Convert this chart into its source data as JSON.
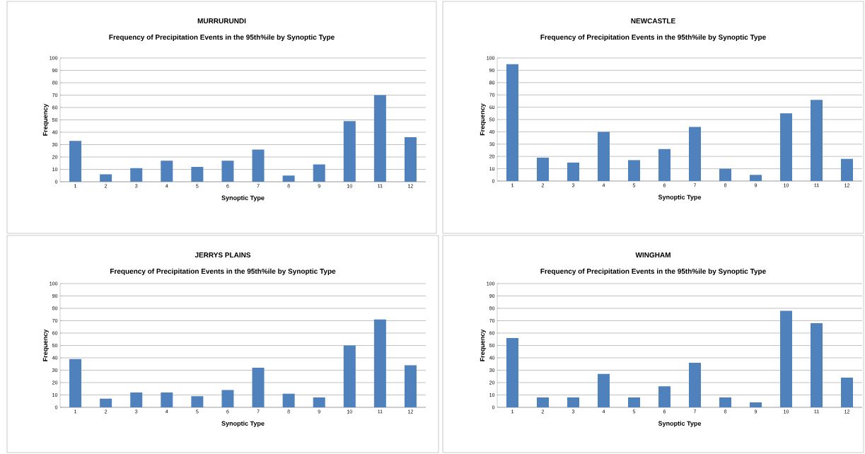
{
  "chart_data": [
    {
      "type": "bar",
      "title": "MURRURUNDI",
      "subtitle": "Frequency of Precipitation  Events in the 95th%ile by Synoptic Type",
      "xlabel": "Synoptic Type",
      "ylabel": "Frequency",
      "categories": [
        "1",
        "2",
        "3",
        "4",
        "5",
        "6",
        "7",
        "8",
        "9",
        "10",
        "11",
        "12"
      ],
      "values": [
        33,
        6,
        11,
        17,
        12,
        17,
        26,
        5,
        14,
        49,
        70,
        36
      ],
      "color": "#4f81bd",
      "ylim": [
        0,
        100
      ],
      "yticks": [
        0,
        10,
        20,
        30,
        40,
        50,
        60,
        70,
        80,
        90,
        100
      ],
      "grid": "y"
    },
    {
      "type": "bar",
      "title": "NEWCASTLE",
      "subtitle": "Frequency of Precipitation  Events in the 95th%ile by Synoptic Type",
      "xlabel": "Synoptic Type",
      "ylabel": "Frequency",
      "categories": [
        "1",
        "2",
        "3",
        "4",
        "5",
        "6",
        "7",
        "8",
        "9",
        "10",
        "11",
        "12"
      ],
      "values": [
        95,
        19,
        15,
        40,
        17,
        26,
        44,
        10,
        5,
        55,
        66,
        18
      ],
      "color": "#4f81bd",
      "ylim": [
        0,
        100
      ],
      "yticks": [
        0,
        10,
        20,
        30,
        40,
        50,
        60,
        70,
        80,
        90,
        100
      ],
      "grid": "y"
    },
    {
      "type": "bar",
      "title": "JERRYS PLAINS",
      "subtitle": "Frequency of Precipitation  Events in the 95th%ile by Synoptic Type",
      "xlabel": "Synoptic Type",
      "ylabel": "Frequency",
      "categories": [
        "1",
        "2",
        "3",
        "4",
        "5",
        "6",
        "7",
        "8",
        "9",
        "10",
        "11",
        "12"
      ],
      "values": [
        39,
        7,
        12,
        12,
        9,
        14,
        32,
        11,
        8,
        50,
        71,
        34
      ],
      "color": "#4f81bd",
      "ylim": [
        0,
        100
      ],
      "yticks": [
        0,
        10,
        20,
        30,
        40,
        50,
        60,
        70,
        80,
        90,
        100
      ],
      "grid": "y"
    },
    {
      "type": "bar",
      "title": "WINGHAM",
      "subtitle": "Frequency of Precipitation  Events in the 95th%ile by Synoptic Type",
      "xlabel": "Synoptic Type",
      "ylabel": "Frequency",
      "categories": [
        "1",
        "2",
        "3",
        "4",
        "5",
        "6",
        "7",
        "8",
        "9",
        "10",
        "11",
        "12"
      ],
      "values": [
        56,
        8,
        8,
        27,
        8,
        17,
        36,
        8,
        4,
        78,
        68,
        24
      ],
      "color": "#4f81bd",
      "ylim": [
        0,
        100
      ],
      "yticks": [
        0,
        10,
        20,
        30,
        40,
        50,
        60,
        70,
        80,
        90,
        100
      ],
      "grid": "y"
    }
  ]
}
